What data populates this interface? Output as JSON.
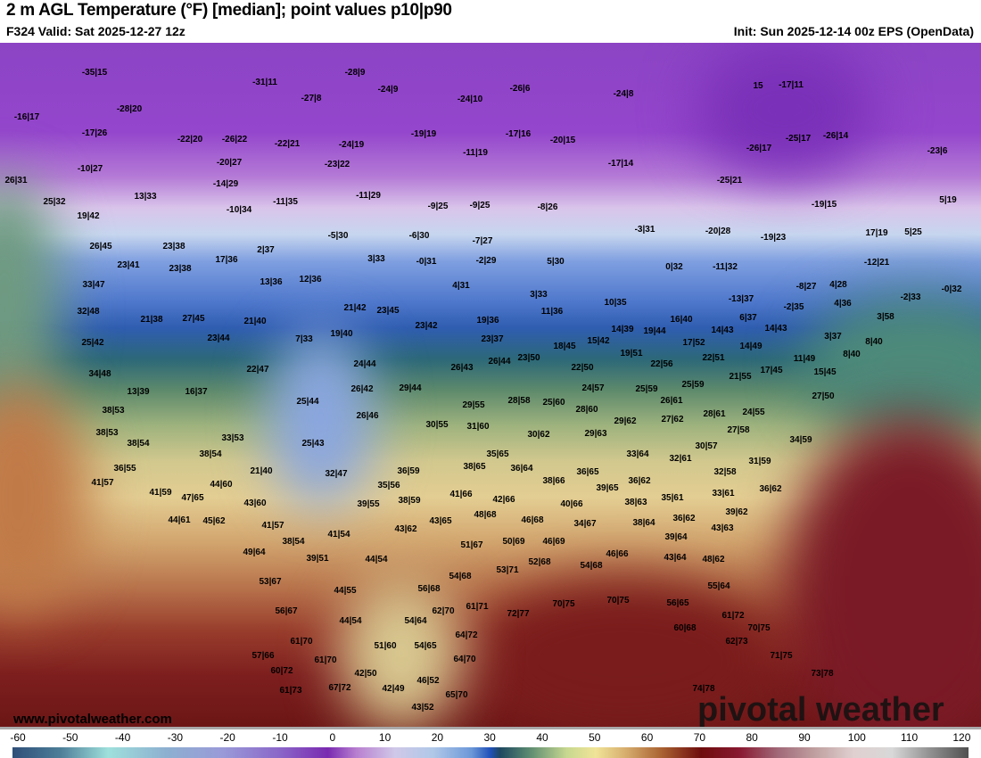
{
  "header": {
    "title": "2 m AGL Temperature (°F) [median]; point values p10|p90",
    "valid": "F324 Valid: Sat 2025-12-27 12z",
    "init": "Init: Sun 2025-12-14 00z EPS (OpenData)"
  },
  "watermark": {
    "url": "www.pivotalweather.com",
    "logo": "pivotal weather"
  },
  "colorbar": {
    "ticks": [
      "-60",
      "-50",
      "-40",
      "-30",
      "-20",
      "-10",
      "0",
      "10",
      "20",
      "30",
      "40",
      "50",
      "60",
      "70",
      "80",
      "90",
      "100",
      "110",
      "120"
    ],
    "units": "°F"
  },
  "points": [
    "-35|15",
    "-28|9",
    "-31|11",
    "-24|9",
    "-27|8",
    "-24|10",
    "-26|6",
    "-24|8",
    "15",
    "-17|11",
    "-16|17",
    "-28|20",
    "-17|26",
    "-22|20",
    "-26|22",
    "-22|21",
    "-24|19",
    "-19|19",
    "-17|16",
    "-20|15",
    "-11|19",
    "-25|17",
    "-26|14",
    "-26|17",
    "-23|6",
    "-10|27",
    "-20|27",
    "-23|22",
    "-17|14",
    "-14|29",
    "-25|21",
    "26|31",
    "13|33",
    "-11|29",
    "25|32",
    "-10|34",
    "-11|35",
    "-9|25",
    "-9|25",
    "-8|26",
    "-19|15",
    "5|19",
    "19|42",
    "26|45",
    "23|38",
    "2|37",
    "-5|30",
    "-6|30",
    "-7|27",
    "-3|31",
    "-20|28",
    "-19|23",
    "17|19",
    "5|25",
    "23|41",
    "23|38",
    "17|36",
    "3|33",
    "-0|31",
    "-2|29",
    "5|30",
    "-12|21",
    "-11|32",
    "33|47",
    "13|36",
    "12|36",
    "4|31",
    "0|32",
    "-8|27",
    "4|28",
    "-2|33",
    "-0|32",
    "3|33",
    "32|48",
    "21|38",
    "27|45",
    "21|40",
    "21|42",
    "23|45",
    "11|36",
    "10|35",
    "-13|37",
    "-2|35",
    "4|36",
    "3|58",
    "23|42",
    "19|36",
    "16|40",
    "6|37",
    "14|43",
    "14|43",
    "25|42",
    "23|44",
    "7|33",
    "19|40",
    "23|37",
    "14|39",
    "19|44",
    "17|52",
    "14|49",
    "3|37",
    "8|40",
    "34|48",
    "22|47",
    "24|44",
    "26|43",
    "26|44",
    "23|50",
    "18|45",
    "15|42",
    "19|51",
    "22|51",
    "11|49",
    "8|40",
    "22|50",
    "22|56",
    "17|45",
    "15|45",
    "13|39",
    "16|37",
    "26|42",
    "29|44",
    "21|55",
    "24|57",
    "25|59",
    "25|59",
    "27|50",
    "26|61",
    "25|44",
    "29|55",
    "28|58",
    "25|60",
    "28|60",
    "24|55",
    "28|61",
    "27|62",
    "38|53",
    "26|46",
    "30|55",
    "31|60",
    "29|62",
    "27|58",
    "38|53",
    "33|53",
    "30|62",
    "29|63",
    "34|59",
    "38|54",
    "25|43",
    "30|57",
    "38|54",
    "35|65",
    "33|64",
    "32|61",
    "31|59",
    "36|55",
    "21|40",
    "38|65",
    "36|64",
    "36|59",
    "36|65",
    "32|58",
    "32|47",
    "41|57",
    "44|60",
    "35|56",
    "38|66",
    "36|62",
    "36|62",
    "39|65",
    "33|61",
    "41|59",
    "47|65",
    "41|66",
    "42|66",
    "35|61",
    "38|59",
    "43|60",
    "39|55",
    "40|66",
    "38|63",
    "39|62",
    "44|61",
    "45|62",
    "48|68",
    "46|68",
    "34|67",
    "38|64",
    "36|62",
    "43|65",
    "41|57",
    "43|62",
    "43|63",
    "41|54",
    "39|64",
    "38|54",
    "50|69",
    "46|69",
    "51|67",
    "49|64",
    "39|51",
    "44|54",
    "52|68",
    "54|68",
    "46|66",
    "43|64",
    "48|62",
    "53|71",
    "54|68",
    "53|67",
    "44|55",
    "56|68",
    "55|64",
    "70|75",
    "70|75",
    "72|77",
    "61|71",
    "62|70",
    "56|67",
    "56|65",
    "44|54",
    "54|64",
    "61|72",
    "70|75",
    "60|68",
    "64|72",
    "54|65",
    "61|70",
    "51|60",
    "62|73",
    "57|66",
    "61|70",
    "64|70",
    "71|75",
    "60|72",
    "42|50",
    "73|78",
    "46|52",
    "42|49",
    "67|72",
    "61|73",
    "74|78",
    "65|70",
    "43|52"
  ]
}
